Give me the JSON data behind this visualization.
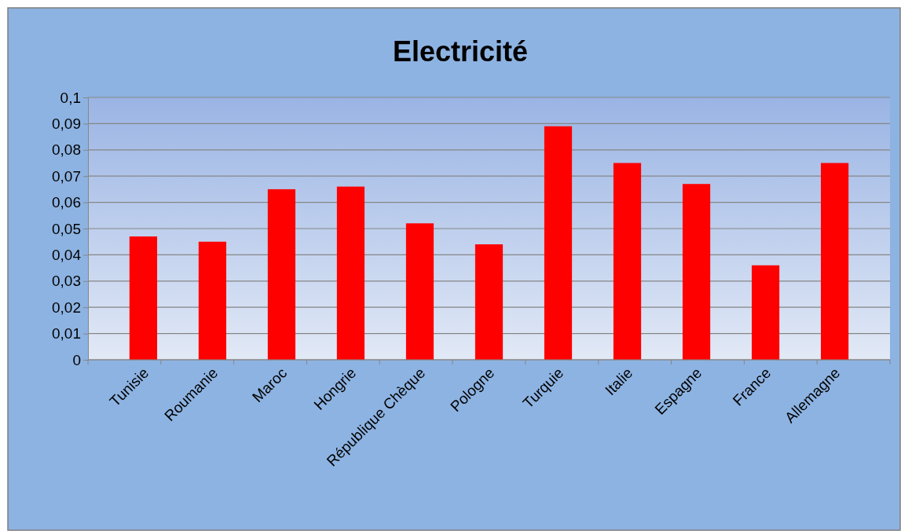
{
  "chart_data": {
    "type": "bar",
    "title": "Electricité",
    "categories": [
      "Tunisie",
      "Roumanie",
      "Maroc",
      "Hongrie",
      "République Chèque",
      "Pologne",
      "Turquie",
      "Italie",
      "Espagne",
      "France",
      "Allemagne"
    ],
    "values": [
      0.047,
      0.045,
      0.065,
      0.066,
      0.052,
      0.044,
      0.089,
      0.075,
      0.067,
      0.036,
      0.075
    ],
    "color": "#ff0000",
    "ylim": [
      0,
      0.1
    ],
    "yticks": [
      {
        "value": 0,
        "label": "0"
      },
      {
        "value": 0.01,
        "label": "0,01"
      },
      {
        "value": 0.02,
        "label": "0,02"
      },
      {
        "value": 0.03,
        "label": "0,03"
      },
      {
        "value": 0.04,
        "label": "0,04"
      },
      {
        "value": 0.05,
        "label": "0,05"
      },
      {
        "value": 0.06,
        "label": "0,06"
      },
      {
        "value": 0.07,
        "label": "0,07"
      },
      {
        "value": 0.08,
        "label": "0,08"
      },
      {
        "value": 0.09,
        "label": "0,09"
      },
      {
        "value": 0.1,
        "label": "0,1"
      }
    ],
    "grid": "y"
  }
}
